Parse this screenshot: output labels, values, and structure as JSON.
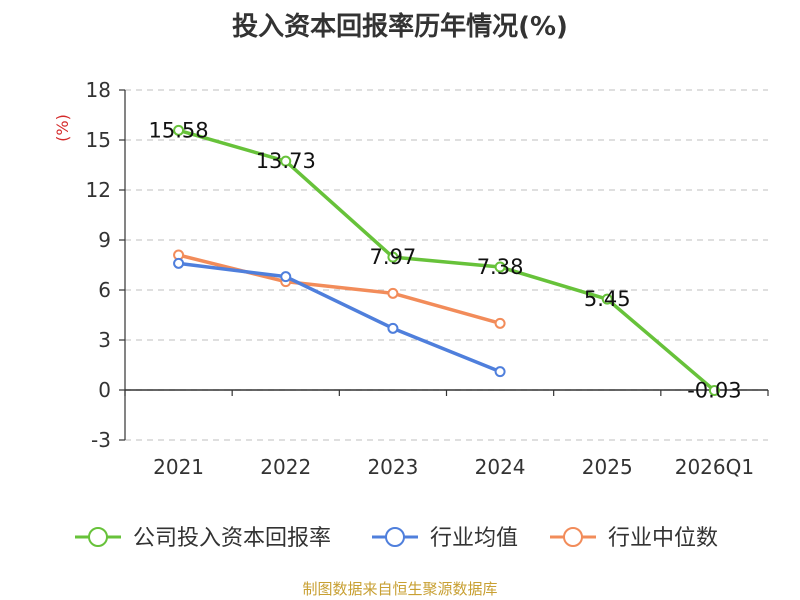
{
  "chart_data": {
    "type": "line",
    "title": "投入资本回报率历年情况(%)",
    "ylabel": "(%)",
    "categories": [
      "2021",
      "2022",
      "2023",
      "2024",
      "2025",
      "2026Q1"
    ],
    "yticks": [
      "-3",
      "0",
      "3",
      "6",
      "9",
      "12",
      "15",
      "18"
    ],
    "ylim": [
      -3,
      18
    ],
    "grid": true,
    "legend_position": "bottom",
    "series": [
      {
        "name": "公司投入资本回报率",
        "color": "#67c23a",
        "values": [
          15.58,
          13.73,
          7.97,
          7.38,
          5.45,
          -0.03
        ],
        "labels": [
          "15.58",
          "13.73",
          "7.97",
          "7.38",
          "5.45",
          "-0.03"
        ]
      },
      {
        "name": "行业均值",
        "color": "#4f7fdc",
        "values": [
          7.6,
          6.8,
          3.7,
          1.1,
          null,
          null
        ]
      },
      {
        "name": "行业中位数",
        "color": "#f28c5a",
        "values": [
          8.1,
          6.5,
          5.8,
          4.0,
          null,
          null
        ]
      }
    ]
  },
  "source": "制图数据来自恒生聚源数据库"
}
